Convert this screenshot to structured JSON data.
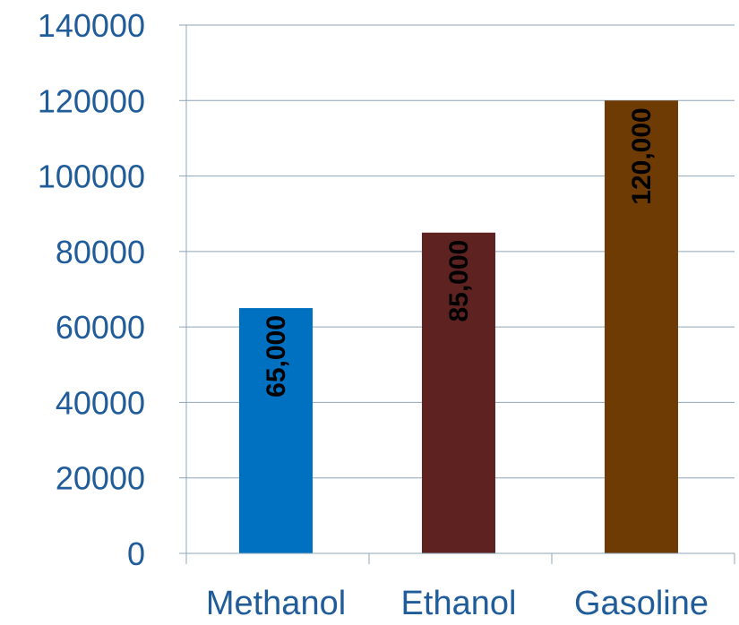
{
  "chart_data": {
    "type": "bar",
    "categories": [
      "Methanol",
      "Ethanol",
      "Gasoline"
    ],
    "values": [
      65000,
      85000,
      120000
    ],
    "data_labels": [
      "65,000",
      "85,000",
      "120,000"
    ],
    "bar_colors": [
      "#0070c0",
      "#5e2320",
      "#6e3b05"
    ],
    "yticks": [
      "0",
      "20000",
      "40000",
      "60000",
      "80000",
      "100000",
      "120000",
      "140000"
    ],
    "ylim": [
      0,
      140000
    ],
    "grid": true,
    "axis_text_color": "#1f5c99",
    "grid_color": "#8ea4b8",
    "data_label_color": "#000000"
  }
}
